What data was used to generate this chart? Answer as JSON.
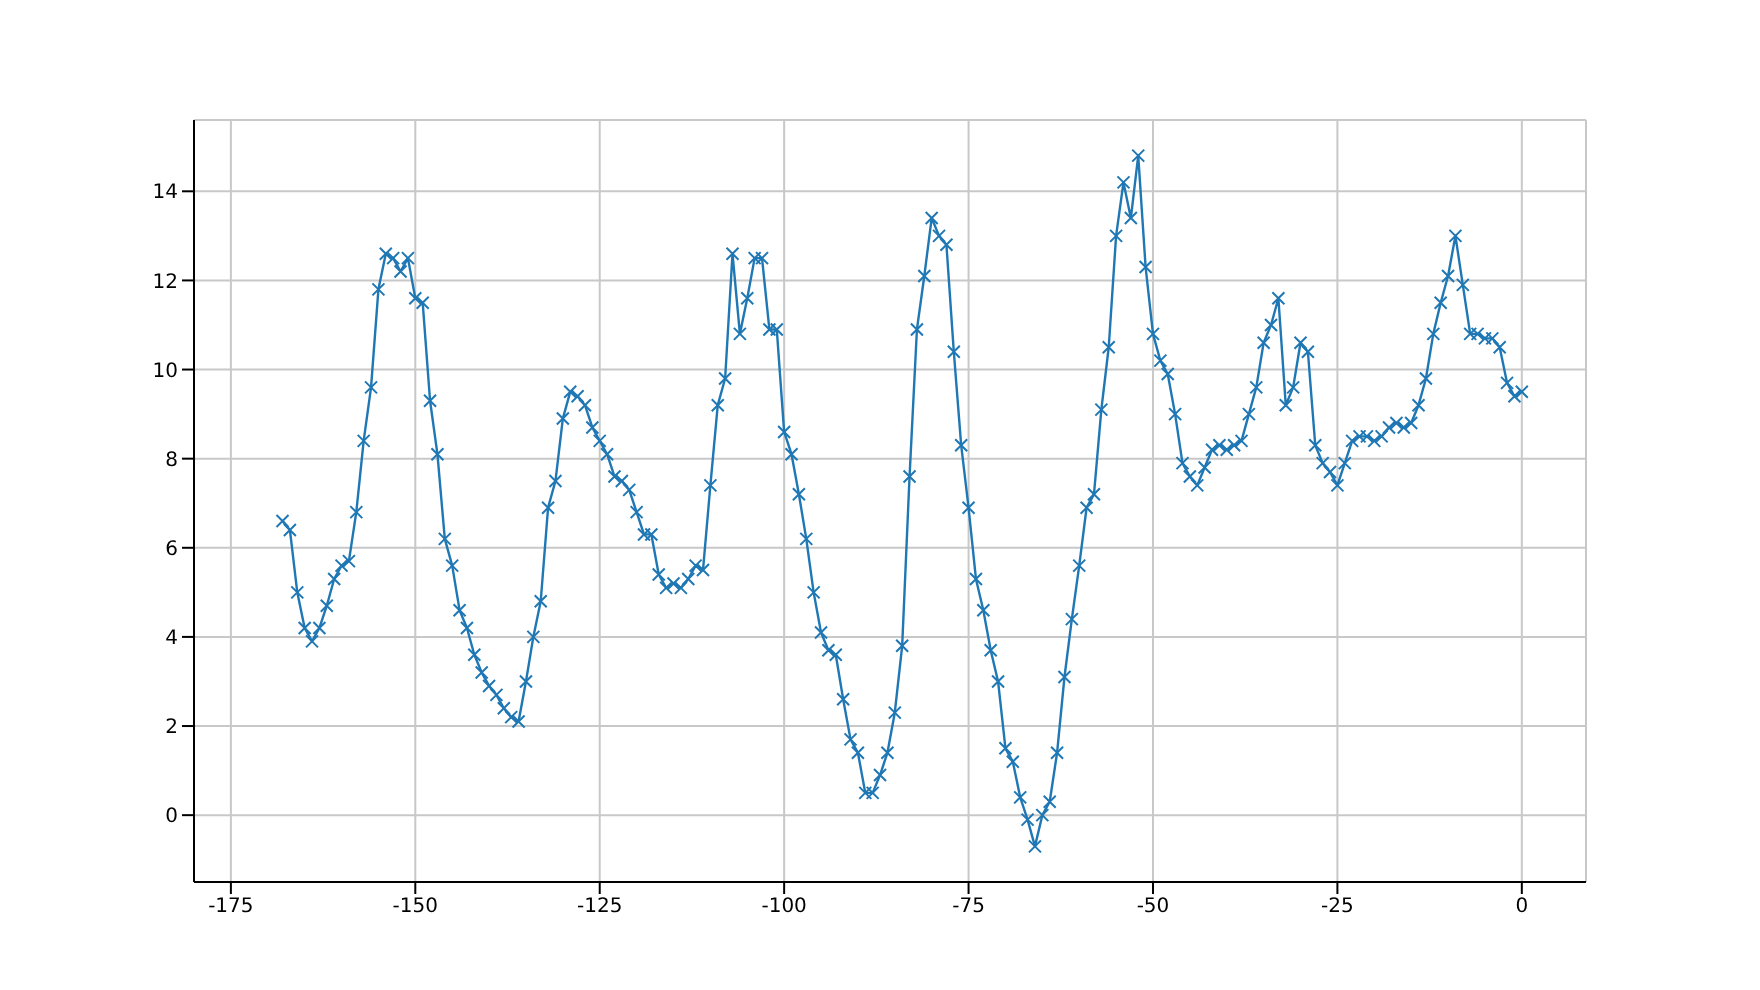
{
  "chart_data": {
    "type": "line",
    "x": [
      -168,
      -167,
      -166,
      -165,
      -164,
      -163,
      -162,
      -161,
      -160,
      -159,
      -158,
      -157,
      -156,
      -155,
      -154,
      -153,
      -152,
      -151,
      -150,
      -149,
      -148,
      -147,
      -146,
      -145,
      -144,
      -143,
      -142,
      -141,
      -140,
      -139,
      -138,
      -137,
      -136,
      -135,
      -134,
      -133,
      -132,
      -131,
      -130,
      -129,
      -128,
      -127,
      -126,
      -125,
      -124,
      -123,
      -122,
      -121,
      -120,
      -119,
      -118,
      -117,
      -116,
      -115,
      -114,
      -113,
      -112,
      -111,
      -110,
      -109,
      -108,
      -107,
      -106,
      -105,
      -104,
      -103,
      -102,
      -101,
      -100,
      -99,
      -98,
      -97,
      -96,
      -95,
      -94,
      -93,
      -92,
      -91,
      -90,
      -89,
      -88,
      -87,
      -86,
      -85,
      -84,
      -83,
      -82,
      -81,
      -80,
      -79,
      -78,
      -77,
      -76,
      -75,
      -74,
      -73,
      -72,
      -71,
      -70,
      -69,
      -68,
      -67,
      -66,
      -65,
      -64,
      -63,
      -62,
      -61,
      -60,
      -59,
      -58,
      -57,
      -56,
      -55,
      -54,
      -53,
      -52,
      -51,
      -50,
      -49,
      -48,
      -47,
      -46,
      -45,
      -44,
      -43,
      -42,
      -41,
      -40,
      -39,
      -38,
      -37,
      -36,
      -35,
      -34,
      -33,
      -32,
      -31,
      -30,
      -29,
      -28,
      -27,
      -26,
      -25,
      -24,
      -23,
      -22,
      -21,
      -20,
      -19,
      -18,
      -17,
      -16,
      -15,
      -14,
      -13,
      -12,
      -11,
      -10,
      -9,
      -8,
      -7,
      -6,
      -5,
      -4,
      -3,
      -2,
      -1,
      0
    ],
    "series": [
      {
        "color": "#1f77b4",
        "values": [
          6.6,
          6.4,
          5.0,
          4.2,
          3.9,
          4.2,
          4.7,
          5.3,
          5.6,
          5.7,
          6.8,
          8.4,
          9.6,
          11.8,
          12.6,
          12.5,
          12.2,
          12.5,
          11.6,
          11.5,
          9.3,
          8.1,
          6.2,
          5.6,
          4.6,
          4.2,
          3.6,
          3.2,
          2.9,
          2.7,
          2.4,
          2.2,
          2.1,
          3.0,
          4.0,
          4.8,
          6.9,
          7.5,
          8.9,
          9.5,
          9.4,
          9.2,
          8.7,
          8.4,
          8.1,
          7.6,
          7.5,
          7.3,
          6.8,
          6.3,
          6.3,
          5.4,
          5.1,
          5.2,
          5.1,
          5.3,
          5.6,
          5.5,
          7.4,
          9.2,
          9.8,
          12.6,
          10.8,
          11.6,
          12.5,
          12.5,
          10.9,
          10.9,
          8.6,
          8.1,
          7.2,
          6.2,
          5.0,
          4.1,
          3.7,
          3.6,
          2.6,
          1.7,
          1.4,
          0.5,
          0.5,
          0.9,
          1.4,
          2.3,
          3.8,
          7.6,
          10.9,
          12.1,
          13.4,
          13.0,
          12.8,
          10.4,
          8.3,
          6.9,
          5.3,
          4.6,
          3.7,
          3.0,
          1.5,
          1.2,
          0.4,
          -0.1,
          -0.7,
          0.0,
          0.3,
          1.4,
          3.1,
          4.4,
          5.6,
          6.9,
          7.2,
          9.1,
          10.5,
          13.0,
          14.2,
          13.4,
          14.8,
          12.3,
          10.8,
          10.2,
          9.9,
          9.0,
          7.9,
          7.6,
          7.4,
          7.8,
          8.2,
          8.3,
          8.2,
          8.3,
          8.4,
          9.0,
          9.6,
          10.6,
          11.0,
          11.6,
          9.2,
          9.6,
          10.6,
          10.4,
          8.3,
          7.9,
          7.7,
          7.4,
          7.9,
          8.4,
          8.5,
          8.5,
          8.4,
          8.5,
          8.7,
          8.8,
          8.7,
          8.8,
          9.2,
          9.8,
          10.8,
          11.5,
          12.1,
          13.0,
          11.9,
          10.8,
          10.8,
          10.7,
          10.7,
          10.5,
          9.7,
          9.4,
          9.5
        ]
      }
    ],
    "xlim": [
      -180,
      8.7
    ],
    "ylim": [
      -1.5,
      15.6
    ],
    "xticks": [
      -175,
      -150,
      -125,
      -100,
      -75,
      -50,
      -25,
      0
    ],
    "yticks": [
      0,
      2,
      4,
      6,
      8,
      10,
      12,
      14
    ],
    "grid": true,
    "marker": "cross",
    "line_style": "solid"
  }
}
